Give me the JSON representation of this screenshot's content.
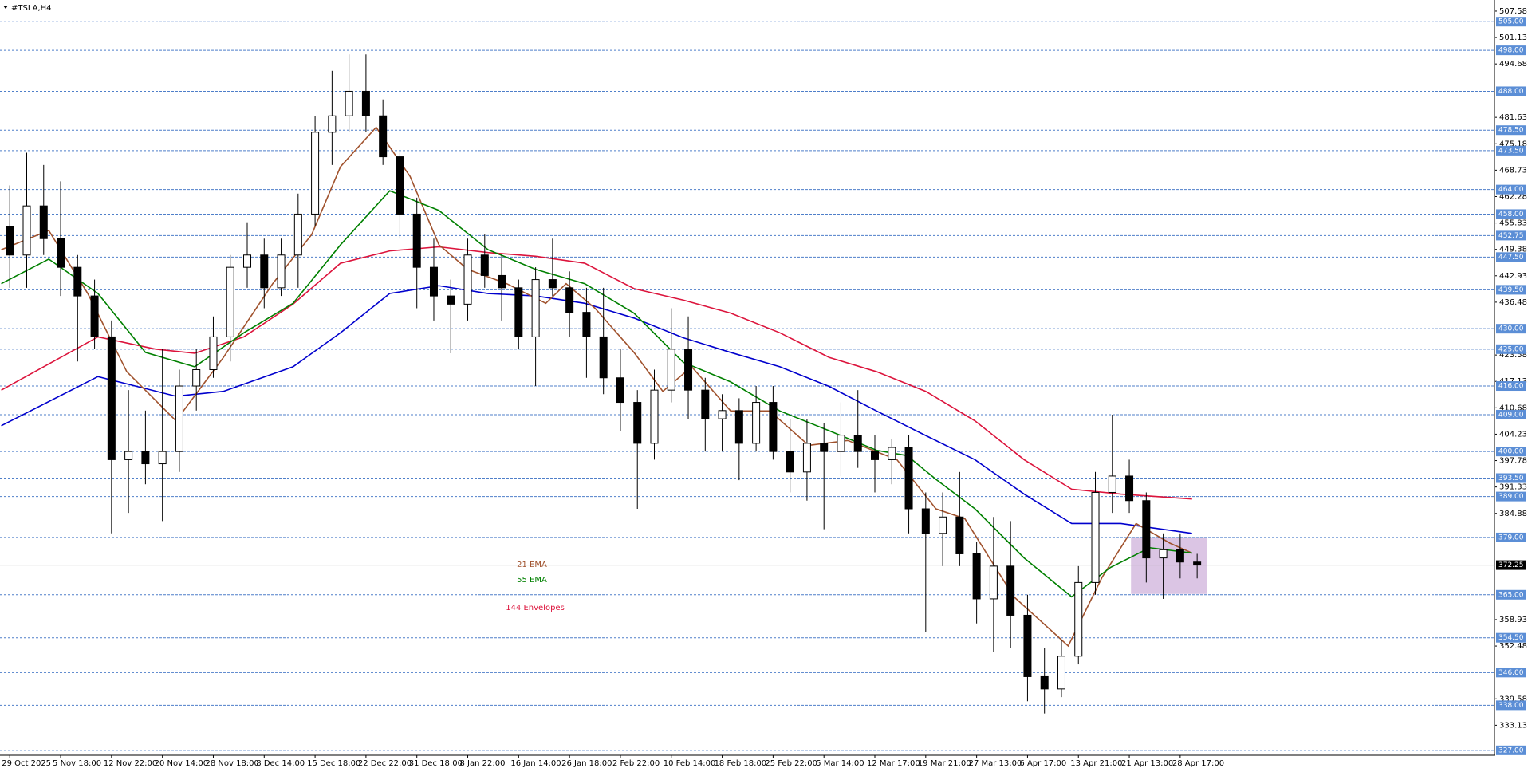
{
  "chart_data": {
    "type": "candlestick",
    "title": "#TSLA,H4",
    "xlim": [
      -0.575,
      87.53
    ],
    "ylim": [
      325.8,
      510.3
    ],
    "xticks": [
      {
        "value": 0,
        "label": "29 Oct 2025"
      },
      {
        "value": 3,
        "label": "5 Nov 18:00"
      },
      {
        "value": 6,
        "label": "12 Nov 22:00"
      },
      {
        "value": 9,
        "label": "20 Nov 14:00"
      },
      {
        "value": 12,
        "label": "28 Nov 18:00"
      },
      {
        "value": 15,
        "label": "8 Dec 14:00"
      },
      {
        "value": 18,
        "label": "15 Dec 18:00"
      },
      {
        "value": 21,
        "label": "22 Dec 22:00"
      },
      {
        "value": 24,
        "label": "31 Dec 18:00"
      },
      {
        "value": 27,
        "label": "8 Jan 22:00"
      },
      {
        "value": 30,
        "label": "16 Jan 14:00"
      },
      {
        "value": 33,
        "label": "26 Jan 18:00"
      },
      {
        "value": 36,
        "label": "2 Feb 22:00"
      },
      {
        "value": 39,
        "label": "10 Feb 14:00"
      },
      {
        "value": 42,
        "label": "18 Feb 18:00"
      },
      {
        "value": 45,
        "label": "25 Feb 22:00"
      },
      {
        "value": 48,
        "label": "5 Mar 14:00"
      },
      {
        "value": 51,
        "label": "12 Mar 17:00"
      },
      {
        "value": 54,
        "label": "19 Mar 21:00"
      },
      {
        "value": 57,
        "label": "27 Mar 13:00"
      },
      {
        "value": 60,
        "label": "6 Apr 17:00"
      },
      {
        "value": 63,
        "label": "13 Apr 21:00"
      },
      {
        "value": 66,
        "label": "21 Apr 13:00"
      },
      {
        "value": 69,
        "label": "28 Apr 17:00"
      }
    ],
    "yticks": [
      507.58,
      501.13,
      494.68,
      481.63,
      475.18,
      468.73,
      462.28,
      455.83,
      449.38,
      442.93,
      436.48,
      423.58,
      417.13,
      410.68,
      404.23,
      397.78,
      391.33,
      384.88,
      358.93,
      352.48,
      339.58,
      333.13
    ],
    "levels": [
      {
        "value": 505,
        "label": "505.00"
      },
      {
        "value": 498,
        "label": "498.00"
      },
      {
        "value": 488,
        "label": "488.00"
      },
      {
        "value": 478.5,
        "label": "478.50"
      },
      {
        "value": 473.5,
        "label": "473.50"
      },
      {
        "value": 464,
        "label": "464.00"
      },
      {
        "value": 458,
        "label": "458.00"
      },
      {
        "value": 452.75,
        "label": "452.75"
      },
      {
        "value": 447.5,
        "label": "447.50"
      },
      {
        "value": 439.5,
        "label": "439.50"
      },
      {
        "value": 430,
        "label": "430.00"
      },
      {
        "value": 425,
        "label": "425.00"
      },
      {
        "value": 416,
        "label": "416.00"
      },
      {
        "value": 409,
        "label": "409.00"
      },
      {
        "value": 400,
        "label": "400.00"
      },
      {
        "value": 393.5,
        "label": "393.50"
      },
      {
        "value": 389,
        "label": "389.00"
      },
      {
        "value": 379,
        "label": "379.00"
      },
      {
        "value": 365,
        "label": "365.00"
      },
      {
        "value": 354.5,
        "label": "354.50"
      },
      {
        "value": 346,
        "label": "346.00"
      },
      {
        "value": 338,
        "label": "338.00"
      },
      {
        "value": 327,
        "label": "327.00"
      }
    ],
    "current_price": 372.25,
    "open": [
      455,
      448,
      460,
      452,
      445,
      438,
      428,
      398,
      400,
      397,
      400,
      416,
      420,
      428,
      445,
      448,
      440,
      448,
      458,
      478,
      482,
      488,
      482,
      472,
      458,
      445,
      438,
      436,
      448,
      443,
      440,
      428,
      442,
      440,
      434,
      428,
      418,
      412,
      402,
      415,
      425,
      415,
      408,
      410,
      402,
      412,
      400,
      395,
      402,
      400,
      404,
      400,
      398,
      401,
      386,
      380,
      384,
      375,
      364,
      372,
      360,
      345,
      342,
      350,
      368,
      390,
      394,
      388,
      374,
      376,
      373
    ],
    "high": [
      465,
      473,
      470,
      466,
      448,
      442,
      432,
      415,
      410,
      425,
      420,
      425,
      433,
      448,
      456,
      452,
      452,
      463,
      482,
      493,
      497,
      497,
      486,
      473,
      462,
      452,
      442,
      452,
      453,
      448,
      442,
      445,
      452,
      444,
      440,
      440,
      425,
      415,
      420,
      435,
      433,
      418,
      414,
      413,
      416,
      416,
      408,
      408,
      407,
      412,
      415,
      404,
      403,
      404,
      390,
      390,
      395,
      378,
      384,
      383,
      365,
      352,
      354,
      372,
      395,
      409,
      398,
      390,
      380,
      380,
      375
    ],
    "low": [
      440,
      440,
      448,
      438,
      422,
      425,
      380,
      385,
      392,
      383,
      395,
      410,
      418,
      422,
      440,
      435,
      438,
      440,
      455,
      470,
      478,
      478,
      470,
      452,
      435,
      432,
      424,
      432,
      440,
      432,
      425,
      416,
      438,
      428,
      418,
      414,
      405,
      386,
      398,
      412,
      408,
      400,
      400,
      393,
      400,
      398,
      390,
      388,
      381,
      394,
      396,
      390,
      392,
      380,
      356,
      372,
      372,
      358,
      351,
      352,
      339,
      336,
      340,
      348,
      365,
      385,
      385,
      368,
      364,
      369,
      369
    ],
    "close": [
      448,
      460,
      452,
      445,
      438,
      428,
      398,
      400,
      397,
      400,
      416,
      420,
      428,
      445,
      448,
      440,
      448,
      458,
      478,
      482,
      488,
      482,
      472,
      458,
      445,
      438,
      436,
      448,
      443,
      440,
      428,
      442,
      440,
      434,
      428,
      418,
      412,
      402,
      415,
      425,
      415,
      408,
      410,
      402,
      412,
      400,
      395,
      402,
      400,
      404,
      400,
      398,
      401,
      386,
      380,
      384,
      375,
      364,
      372,
      360,
      345,
      342,
      350,
      368,
      390,
      394,
      388,
      374,
      376,
      373,
      372.25
    ],
    "series": [
      {
        "name": "21 EMA",
        "color": "#a0522d",
        "x": [
          -0.5,
          2.3,
          4.6,
          6.9,
          9.8,
          12.6,
          15.5,
          17.8,
          19.5,
          21.6,
          23.6,
          25.3,
          27,
          29.3,
          31.6,
          32.8,
          34.5,
          36.8,
          38.5,
          40.2,
          42.5,
          44.8,
          47.1,
          49.4,
          52.3,
          54.6,
          56.3,
          59.2,
          62.4,
          64.4,
          66.4,
          68.4,
          69.7
        ],
        "values": [
          449.3,
          454,
          438.6,
          419.5,
          407.5,
          423,
          441,
          453,
          469.6,
          479.2,
          467.2,
          450.5,
          444.5,
          441,
          436.2,
          441,
          435,
          424.2,
          414.7,
          420.7,
          409.9,
          409.9,
          401.5,
          402.7,
          398,
          386,
          383.6,
          364.5,
          352.5,
          369.3,
          382.4,
          377.6,
          375.2
        ]
      },
      {
        "name": "55 EMA",
        "color": "#008000",
        "x": [
          -0.5,
          2.3,
          5.2,
          8,
          10.9,
          13.8,
          16.7,
          19.5,
          22.4,
          25.3,
          28.2,
          31,
          33.9,
          36.8,
          39.7,
          42.5,
          45.4,
          48.3,
          51.1,
          52.9,
          54.6,
          56.9,
          59.8,
          62.6,
          64.9,
          67.2,
          69.7
        ],
        "values": [
          441,
          447,
          438.6,
          424.2,
          420.7,
          429,
          436.2,
          450.5,
          463.7,
          458.9,
          449.3,
          444.5,
          441,
          433.8,
          421.8,
          417,
          409.9,
          405.1,
          400.3,
          399,
          393.2,
          386,
          374,
          364.5,
          371.7,
          376.5,
          375.2
        ]
      }
    ],
    "envelopes": {
      "name": "144 Envelopes",
      "upper": {
        "color": "#dc143c",
        "x": [
          -0.5,
          5.2,
          8.6,
          10.9,
          13.8,
          16.7,
          19.5,
          22.4,
          25.3,
          28.2,
          31,
          33.9,
          36.8,
          39.7,
          42.5,
          45.4,
          48.3,
          51.1,
          54,
          56.9,
          59.8,
          62.6,
          65.5,
          69.7
        ],
        "values": [
          415,
          428,
          425,
          424,
          428,
          436,
          446,
          449,
          450,
          448.6,
          447.7,
          446,
          439.8,
          437,
          433.8,
          429,
          423,
          419.5,
          414.7,
          407.5,
          398,
          390.8,
          389.6,
          388.4
        ]
      },
      "lower": {
        "color": "#0000cd",
        "x": [
          -0.5,
          5.2,
          9.8,
          12.6,
          16.7,
          19.5,
          22.4,
          25.3,
          28.2,
          31,
          33.9,
          36.8,
          39.7,
          42.5,
          45.4,
          48.3,
          51.1,
          54,
          56.9,
          59.8,
          62.6,
          65.5,
          69.7
        ],
        "values": [
          406.3,
          418.3,
          413.5,
          414.7,
          420.7,
          429,
          438.6,
          440.5,
          438.6,
          438,
          436.2,
          432.6,
          427.8,
          424.2,
          420.7,
          415.9,
          409.9,
          403.9,
          398,
          389.6,
          382.4,
          382.4,
          380
        ]
      }
    },
    "zone": {
      "x": [
        66.1,
        70.6
      ],
      "y": [
        365.2,
        379.1
      ]
    }
  }
}
